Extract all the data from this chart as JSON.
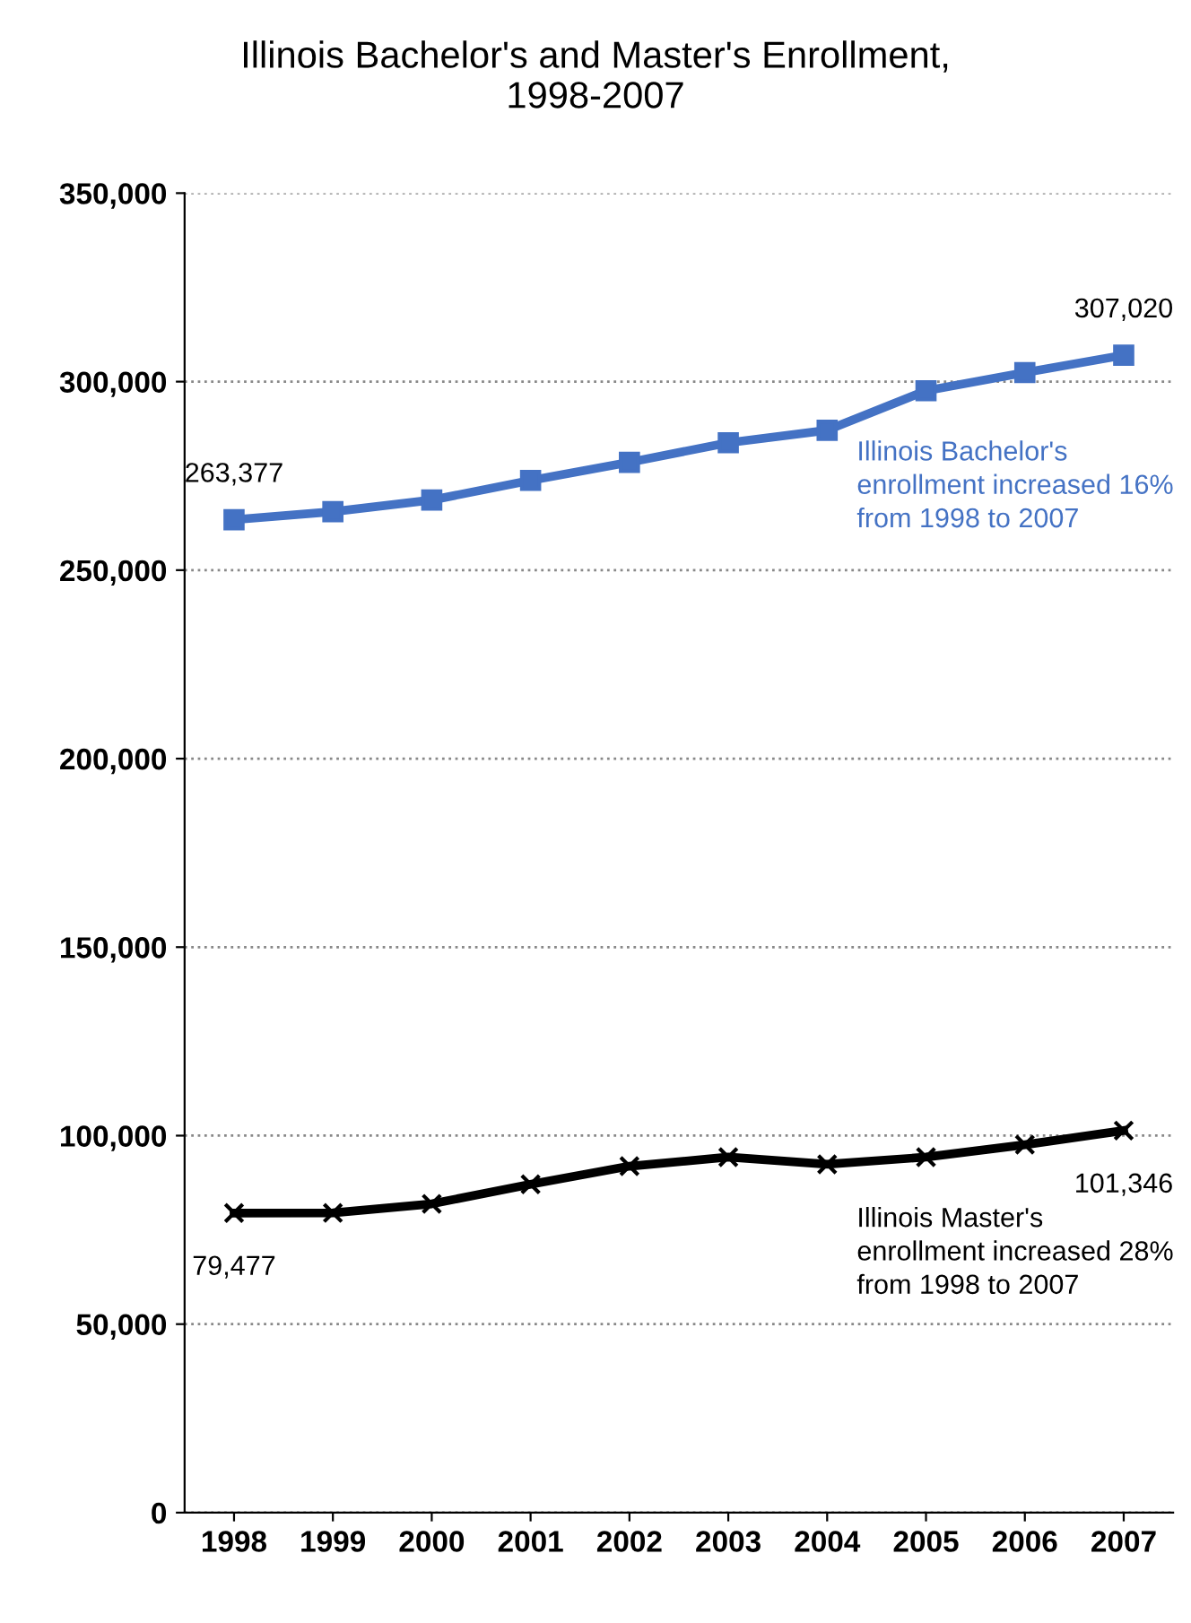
{
  "chart_data": {
    "type": "line",
    "title": "Illinois Bachelor's and Master's Enrollment,\n1998-2007",
    "categories": [
      "1998",
      "1999",
      "2000",
      "2001",
      "2002",
      "2003",
      "2004",
      "2005",
      "2006",
      "2007"
    ],
    "series": [
      {
        "color": "#4472c4",
        "marker": "square",
        "values": [
          263377,
          265500,
          268600,
          273800,
          278600,
          283800,
          287100,
          297600,
          302400,
          307020
        ],
        "value_labels": [
          "263,377",
          null,
          null,
          null,
          null,
          null,
          null,
          null,
          null,
          "307,020"
        ]
      },
      {
        "color": "#000000",
        "marker": "cross",
        "values": [
          79477,
          79500,
          81900,
          87100,
          91900,
          94300,
          92400,
          94300,
          97600,
          101346
        ],
        "value_labels": [
          "79,477",
          null,
          null,
          null,
          null,
          null,
          null,
          null,
          null,
          "101,346"
        ]
      }
    ],
    "annotations": [
      "Illinois Bachelor's\nenrollment increased 16%\nfrom 1998 to 2007",
      "Illinois Master's\nenrollment increased 28%\nfrom 1998 to 2007"
    ],
    "ylim": [
      0,
      350000
    ],
    "yticks": [
      {
        "value": 0,
        "label": "0"
      },
      {
        "value": 50000,
        "label": "50,000"
      },
      {
        "value": 100000,
        "label": "100,000"
      },
      {
        "value": 150000,
        "label": "150,000"
      },
      {
        "value": 200000,
        "label": "200,000"
      },
      {
        "value": 250000,
        "label": "250,000"
      },
      {
        "value": 300000,
        "label": "300,000"
      },
      {
        "value": 350000,
        "label": "350,000"
      }
    ],
    "grid": "y",
    "legend": false,
    "line_style": "solid"
  }
}
